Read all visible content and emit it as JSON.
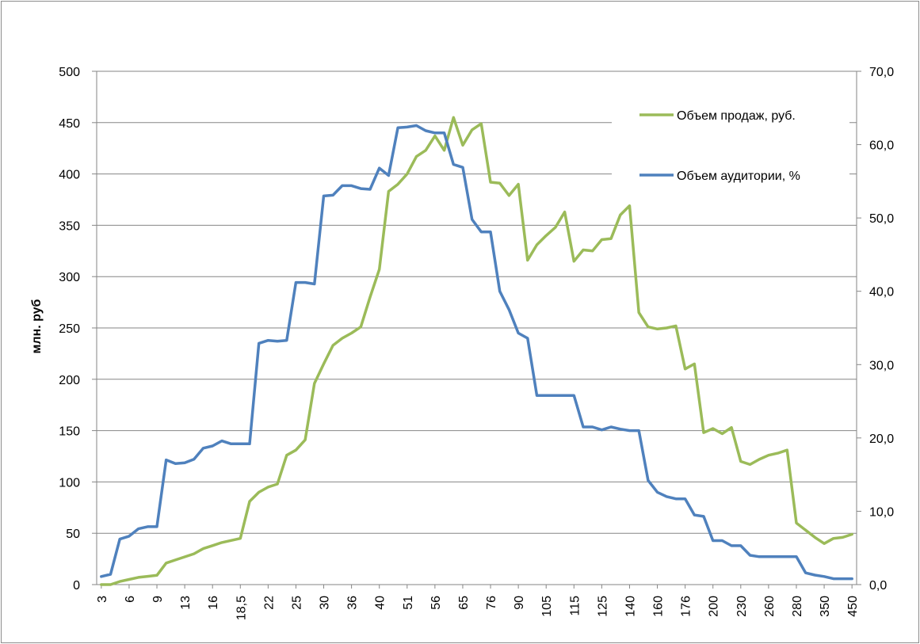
{
  "chart_data": {
    "type": "line",
    "ylabel": "млн. руб",
    "y_left": {
      "min": 0,
      "max": 500,
      "step": 50,
      "tick_labels": [
        "0",
        "50",
        "100",
        "150",
        "200",
        "250",
        "300",
        "350",
        "400",
        "450",
        "500"
      ]
    },
    "y_right": {
      "min": 0,
      "max": 70,
      "step": 10,
      "tick_labels": [
        "0,0",
        "10,0",
        "20,0",
        "30,0",
        "40,0",
        "50,0",
        "60,0",
        "70,0"
      ]
    },
    "x_labels": [
      "3",
      "6",
      "9",
      "13",
      "16",
      "18,5",
      "22",
      "25",
      "30",
      "36",
      "40",
      "51",
      "56",
      "65",
      "76",
      "90",
      "105",
      "115",
      "125",
      "140",
      "160",
      "176",
      "200",
      "230",
      "260",
      "280",
      "350",
      "450"
    ],
    "grid": true,
    "legend_position": "top-right, inside plot",
    "colors": {
      "sales": "#9BBB59",
      "audience": "#4F81BD",
      "grid": "#868686",
      "axis": "#868686"
    },
    "series": [
      {
        "name": "Объем продаж, руб.",
        "axis": "left",
        "values": [
          0,
          0,
          3,
          5,
          7,
          8,
          9,
          21,
          24,
          27,
          30,
          35,
          38,
          41,
          43,
          45,
          81,
          90,
          95,
          98,
          126,
          131,
          141,
          196,
          215,
          233,
          240,
          245,
          251,
          280,
          307,
          383,
          390,
          400,
          417,
          423,
          437,
          423,
          455,
          428,
          443,
          449,
          392,
          391,
          379,
          390,
          316,
          331,
          340,
          348,
          363,
          315,
          326,
          325,
          336,
          337,
          360,
          369,
          265,
          251,
          249,
          250,
          252,
          210,
          215,
          148,
          152,
          147,
          153,
          120,
          117,
          122,
          126,
          128,
          131,
          60,
          53,
          46,
          40,
          45,
          46,
          49
        ]
      },
      {
        "name": "Объем аудитории, %",
        "axis": "right",
        "values": [
          1.1,
          1.4,
          6.2,
          6.6,
          7.6,
          7.9,
          7.9,
          17.0,
          16.5,
          16.6,
          17.1,
          18.6,
          18.9,
          19.6,
          19.2,
          19.2,
          19.2,
          32.9,
          33.3,
          33.2,
          33.3,
          41.2,
          41.2,
          41.0,
          53.0,
          53.1,
          54.4,
          54.4,
          54.0,
          53.9,
          56.8,
          55.8,
          62.3,
          62.4,
          62.6,
          61.9,
          61.6,
          61.6,
          57.3,
          56.9,
          49.8,
          48.1,
          48.1,
          40.0,
          37.5,
          34.3,
          33.6,
          25.8,
          25.8,
          25.8,
          25.8,
          25.8,
          21.5,
          21.5,
          21.1,
          21.5,
          21.2,
          21.0,
          21.0,
          14.2,
          12.6,
          12.0,
          11.7,
          11.7,
          9.5,
          9.3,
          6.0,
          6.0,
          5.3,
          5.3,
          4.0,
          3.8,
          3.8,
          3.8,
          3.8,
          3.8,
          1.6,
          1.3,
          1.1,
          0.8,
          0.8,
          0.8
        ]
      }
    ]
  }
}
